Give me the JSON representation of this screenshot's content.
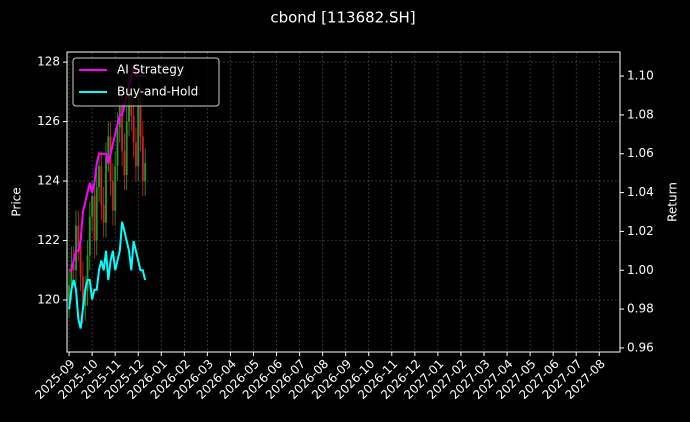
{
  "chart_data": {
    "type": "candlestick",
    "title": "cbond [113682.SH]",
    "ylabel": "Price",
    "y2label": "Return",
    "x": [
      0,
      0.1,
      0.2,
      0.3,
      0.4,
      0.5,
      0.6,
      0.7,
      0.8,
      0.9,
      1.0,
      1.1,
      1.2,
      1.3,
      1.4,
      1.5,
      1.6,
      1.7,
      1.8,
      1.9,
      2.0,
      2.1,
      2.2,
      2.3,
      2.4,
      2.5,
      2.6,
      2.7,
      2.8,
      2.9,
      3.0,
      3.1,
      3.2,
      3.3
    ],
    "open": [
      120.0,
      120.5,
      121.2,
      121.0,
      122.5,
      121.8,
      120.8,
      119.8,
      120.3,
      121.5,
      122.8,
      123.5,
      122.0,
      123.8,
      124.5,
      123.2,
      122.6,
      124.8,
      125.5,
      124.0,
      123.0,
      124.5,
      125.8,
      126.5,
      125.0,
      124.2,
      126.0,
      127.0,
      126.2,
      125.3,
      124.5,
      126.8,
      125.5,
      124.0
    ],
    "high": [
      121.0,
      121.8,
      121.8,
      123.0,
      123.0,
      122.3,
      121.3,
      120.8,
      122.0,
      123.3,
      124.0,
      124.0,
      124.3,
      125.0,
      125.0,
      123.8,
      125.3,
      126.0,
      126.0,
      124.6,
      125.0,
      126.3,
      127.0,
      127.0,
      125.6,
      126.5,
      127.6,
      127.5,
      126.7,
      125.8,
      127.3,
      127.3,
      126.0,
      125.1
    ],
    "low": [
      119.4,
      120.0,
      120.5,
      120.5,
      121.3,
      120.3,
      119.2,
      119.3,
      119.8,
      121.0,
      122.3,
      121.4,
      121.5,
      123.3,
      122.7,
      122.1,
      122.1,
      124.3,
      123.5,
      122.5,
      122.5,
      124.0,
      125.3,
      124.5,
      123.7,
      123.7,
      125.5,
      125.7,
      124.8,
      124.0,
      124.0,
      125.0,
      123.5,
      123.5
    ],
    "close": [
      120.5,
      121.2,
      121.0,
      122.5,
      121.8,
      120.8,
      119.8,
      120.3,
      121.5,
      122.8,
      123.5,
      122.0,
      123.8,
      124.5,
      123.2,
      122.6,
      124.8,
      125.5,
      124.0,
      123.0,
      124.5,
      125.8,
      126.5,
      125.0,
      124.2,
      126.0,
      127.0,
      126.2,
      125.3,
      124.5,
      126.8,
      125.5,
      124.0,
      124.6
    ],
    "up_color": "#2ca02c",
    "down_color": "#d62728",
    "series": [
      {
        "name": "AI Strategy",
        "color": "#ff00ff",
        "axis": "y2",
        "values": [
          1.0,
          1.0,
          1.005,
          1.01,
          1.01,
          1.015,
          1.03,
          1.035,
          1.04,
          1.045,
          1.04,
          1.045,
          1.055,
          1.06,
          1.06,
          1.06,
          1.06,
          1.055,
          1.06,
          1.065,
          1.07,
          1.075,
          1.08,
          1.08,
          1.085,
          1.09,
          1.095,
          1.1,
          1.105,
          1.1,
          1.1,
          1.1,
          1.1,
          1.1
        ]
      },
      {
        "name": "Buy-and-Hold",
        "color": "#00ffff",
        "axis": "y2",
        "values": [
          0.98,
          0.99,
          0.995,
          0.99,
          0.975,
          0.97,
          0.98,
          0.99,
          0.995,
          0.995,
          0.985,
          0.99,
          0.99,
          1.0,
          1.005,
          1.0,
          1.01,
          0.995,
          1.005,
          1.01,
          1.0,
          1.005,
          1.01,
          1.025,
          1.02,
          1.015,
          1.01,
          1.0,
          1.015,
          1.01,
          1.005,
          1.0,
          1.0,
          0.995
        ]
      }
    ],
    "xlim": [
      -0.09,
      23.9
    ],
    "xticks": [
      {
        "value": 0,
        "label": "2025-09"
      },
      {
        "value": 1,
        "label": "2025-10"
      },
      {
        "value": 2,
        "label": "2025-11"
      },
      {
        "value": 3,
        "label": "2025-12"
      },
      {
        "value": 4,
        "label": "2026-01"
      },
      {
        "value": 5,
        "label": "2026-02"
      },
      {
        "value": 6,
        "label": "2026-03"
      },
      {
        "value": 7,
        "label": "2026-04"
      },
      {
        "value": 8,
        "label": "2026-05"
      },
      {
        "value": 9,
        "label": "2026-06"
      },
      {
        "value": 10,
        "label": "2026-07"
      },
      {
        "value": 11,
        "label": "2026-08"
      },
      {
        "value": 12,
        "label": "2026-09"
      },
      {
        "value": 13,
        "label": "2026-10"
      },
      {
        "value": 14,
        "label": "2026-11"
      },
      {
        "value": 15,
        "label": "2026-12"
      },
      {
        "value": 16,
        "label": "2027-01"
      },
      {
        "value": 17,
        "label": "2027-02"
      },
      {
        "value": 18,
        "label": "2027-03"
      },
      {
        "value": 19,
        "label": "2027-04"
      },
      {
        "value": 20,
        "label": "2027-05"
      },
      {
        "value": 21,
        "label": "2027-06"
      },
      {
        "value": 22,
        "label": "2027-07"
      },
      {
        "value": 23,
        "label": "2027-08"
      }
    ],
    "ylim": [
      118.25,
      128.34
    ],
    "yticks": [
      120,
      122,
      124,
      126,
      128
    ],
    "y2lim": [
      0.9579,
      1.1124
    ],
    "y2ticks": [
      {
        "value": 0.96,
        "label": "0.96"
      },
      {
        "value": 0.98,
        "label": "0.98"
      },
      {
        "value": 1.0,
        "label": "1.00"
      },
      {
        "value": 1.02,
        "label": "1.02"
      },
      {
        "value": 1.04,
        "label": "1.04"
      },
      {
        "value": 1.06,
        "label": "1.06"
      },
      {
        "value": 1.08,
        "label": "1.08"
      },
      {
        "value": 1.1,
        "label": "1.10"
      }
    ],
    "grid": true,
    "legend": "upper left"
  }
}
